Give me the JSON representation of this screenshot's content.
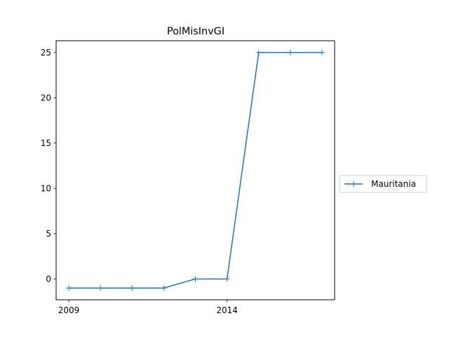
{
  "chart_data": {
    "type": "line",
    "title": "PolMisInvGI",
    "xlabel": "",
    "ylabel": "",
    "x": [
      2009,
      2010,
      2011,
      2012,
      2013,
      2014,
      2015,
      2016,
      2017
    ],
    "series": [
      {
        "name": "Mauritania",
        "values": [
          -1,
          -1,
          -1,
          -1,
          0,
          0,
          25,
          25,
          25
        ],
        "color": "#1f77b4",
        "marker": "+"
      }
    ],
    "xlim": [
      2008.6,
      2017.4
    ],
    "ylim": [
      -2.3,
      26.3
    ],
    "x_ticks": [
      "2009",
      "2014"
    ],
    "y_ticks": [
      "0",
      "5",
      "10",
      "15",
      "20",
      "25"
    ],
    "grid": false,
    "legend_position": "right, outside plot"
  }
}
